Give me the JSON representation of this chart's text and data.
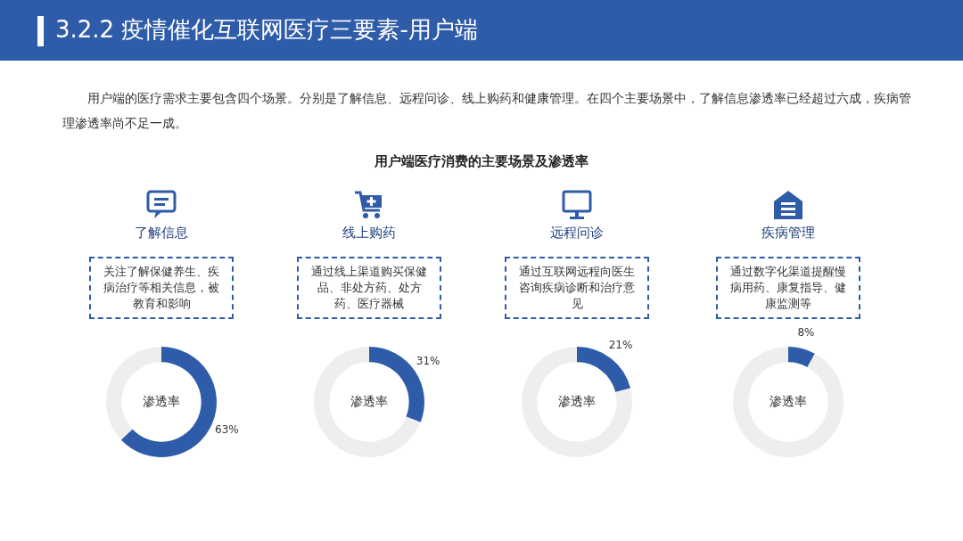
{
  "chart_data": [
    {
      "type": "other",
      "title": "3.2.2 疫情催化互联网医疗三要素-用户端",
      "annotations": [
        "用户端的医疗需求主要包含四个场景。分别是了解信息、远程问诊、线上购药和健康管理。在四个主要场景中，了解信息渗透率已经超过六成，疾病管理渗透率尚不足一成。",
        "用户端医疗消费的主要场景及渗透率"
      ]
    },
    {
      "type": "donut",
      "title": "了解信息",
      "annotations": [
        "关注了解保健养生、疾病治疗等相关信息，被教育和影响"
      ],
      "categories": [
        "渗透率",
        null
      ],
      "values": [
        63,
        37
      ],
      "colors": [
        "#2f5ca8",
        "#eeeeee"
      ],
      "value_labels": [
        "63%",
        null
      ]
    },
    {
      "type": "donut",
      "title": "线上购药",
      "annotations": [
        "通过线上渠道购买保健品、非处方药、处方药、医疗器械"
      ],
      "categories": [
        "渗透率",
        null
      ],
      "values": [
        31,
        69
      ],
      "colors": [
        "#2f5ca8",
        "#eeeeee"
      ],
      "value_labels": [
        "31%",
        null
      ]
    },
    {
      "type": "donut",
      "title": "远程问诊",
      "annotations": [
        "通过互联网远程向医生咨询疾病诊断和治疗意见"
      ],
      "categories": [
        "渗透率",
        null
      ],
      "values": [
        21,
        79
      ],
      "colors": [
        "#2f5ca8",
        "#eeeeee"
      ],
      "value_labels": [
        "21%",
        null
      ]
    },
    {
      "type": "donut",
      "title": "疾病管理",
      "annotations": [
        "通过数字化渠道提醒慢病用药、康复指导、健康监测等"
      ],
      "categories": [
        "渗透率",
        null
      ],
      "values": [
        8,
        92
      ],
      "colors": [
        "#2f5ca8",
        "#eeeeee"
      ],
      "value_labels": [
        "8%",
        null
      ]
    }
  ]
}
